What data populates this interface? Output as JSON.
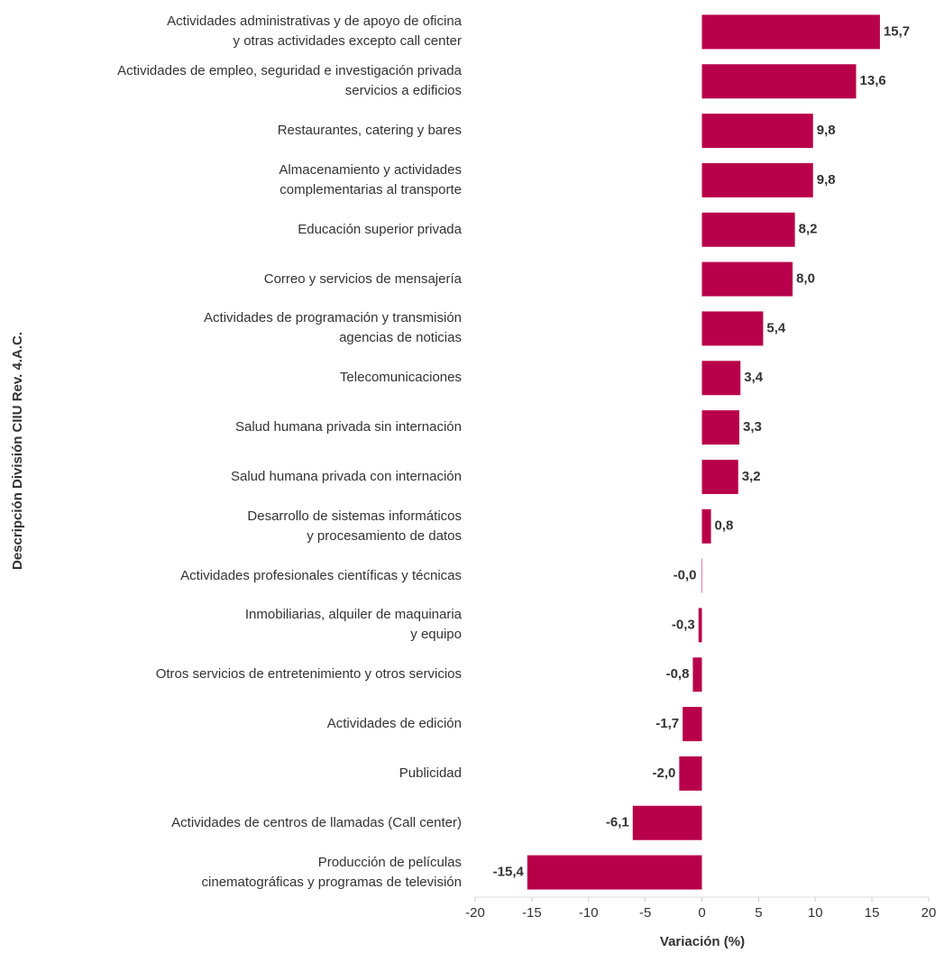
{
  "chart_data": {
    "type": "bar",
    "orientation": "horizontal",
    "y_label": "Descripción División CIIU Rev. 4.A.C.",
    "x_label": "Variación (%)",
    "categories": [
      "Actividades administrativas y de apoyo de oficina\ny otras actividades excepto call center",
      "Actividades de empleo, seguridad e investigación privada\nservicios a edificios",
      "Restaurantes, catering y bares",
      "Almacenamiento y actividades\ncomplementarias al transporte",
      "Educación superior privada",
      "Correo y servicios de mensajería",
      "Actividades de programación y transmisión\nagencias de noticias",
      "Telecomunicaciones",
      "Salud humana privada sin internación",
      "Salud humana privada con internación",
      "Desarrollo de sistemas informáticos\ny procesamiento de datos",
      "Actividades profesionales científicas y técnicas",
      "Inmobiliarias, alquiler de maquinaria\ny equipo",
      "Otros servicios de entretenimiento y otros servicios",
      "Actividades de edición",
      "Publicidad",
      "Actividades de centros de llamadas (Call center)",
      "Producción de películas\ncinematográficas y programas de televisión"
    ],
    "values": [
      15.7,
      13.6,
      9.8,
      9.8,
      8.2,
      8.0,
      5.4,
      3.4,
      3.3,
      3.2,
      0.8,
      -0.02,
      -0.3,
      -0.8,
      -1.7,
      -2.0,
      -6.1,
      -15.4
    ],
    "value_labels": [
      "15,7",
      "13,6",
      "9,8",
      "9,8",
      "8,2",
      "8,0",
      "5,4",
      "3,4",
      "3,3",
      "3,2",
      "0,8",
      "-0,0",
      "-0,3",
      "-0,8",
      "-1,7",
      "-2,0",
      "-6,1",
      "-15,4"
    ],
    "color": "#b8004a",
    "xlim": [
      -20,
      20
    ],
    "xticks": [
      -20,
      -15,
      -10,
      -5,
      0,
      5,
      10,
      15,
      20
    ]
  }
}
